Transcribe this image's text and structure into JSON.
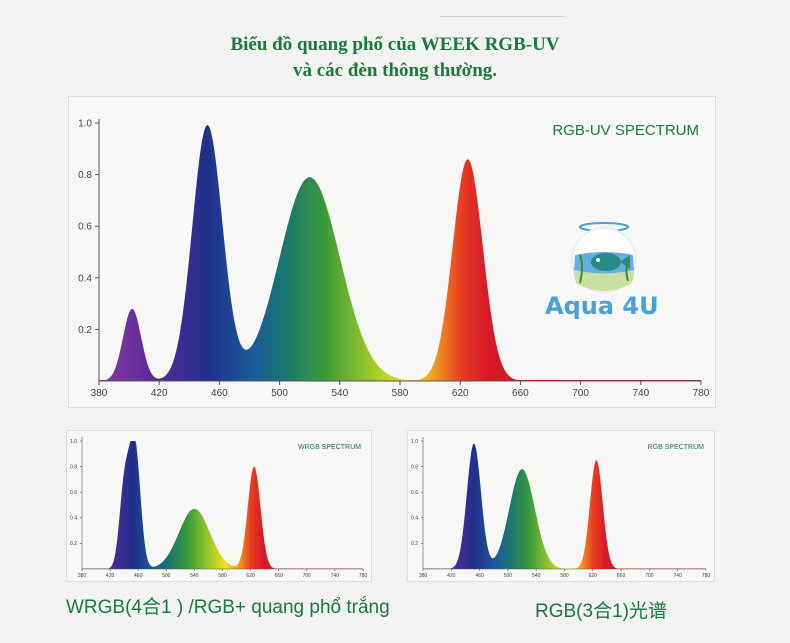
{
  "header": {
    "title_line1": "Biểu đồ quang phổ của WEEK RGB-UV",
    "title_line2": "và các đèn thông thường."
  },
  "logo": {
    "text": "Aqua 4U",
    "icon": "fishbowl-icon",
    "color": "#4aa0d8"
  },
  "captions": {
    "wrgb": "WRGB(4合1 ) /RGB+ quang phổ trắng",
    "rgb": "RGB(3合1)光谱"
  },
  "colors": {
    "title_green": "#1a7a3c",
    "label_green": "#1a7a3c"
  },
  "chart_data": [
    {
      "type": "area",
      "title": "RGB-UV SPECTRUM",
      "x_ticks": [
        380,
        420,
        460,
        500,
        540,
        580,
        620,
        660,
        700,
        740,
        780
      ],
      "y_ticks": [
        0.2,
        0.4,
        0.6,
        0.8,
        1.0
      ],
      "xlim": [
        380,
        780
      ],
      "ylim": [
        0,
        1.0
      ],
      "grid": false,
      "fill": "visible-spectrum-gradient",
      "peaks": [
        {
          "x": 402,
          "y": 0.28,
          "width": 6
        },
        {
          "x": 452,
          "y": 0.99,
          "width": 10
        },
        {
          "x": 520,
          "y": 0.79,
          "width": 20
        },
        {
          "x": 625,
          "y": 0.86,
          "width": 10
        }
      ]
    },
    {
      "type": "area",
      "title": "WRGB SPECTRUM",
      "x_ticks": [
        380,
        420,
        460,
        500,
        540,
        580,
        620,
        660,
        700,
        740,
        780
      ],
      "y_ticks": [
        0.2,
        0.4,
        0.6,
        0.8,
        1.0
      ],
      "xlim": [
        380,
        780
      ],
      "ylim": [
        0,
        1.0
      ],
      "grid": false,
      "fill": "visible-spectrum-gradient",
      "peaks": [
        {
          "x": 440,
          "y": 0.6,
          "width": 7
        },
        {
          "x": 455,
          "y": 0.98,
          "width": 8
        },
        {
          "x": 540,
          "y": 0.47,
          "width": 22
        },
        {
          "x": 625,
          "y": 0.8,
          "width": 9
        }
      ]
    },
    {
      "type": "area",
      "title": "RGB SPECTRUM",
      "x_ticks": [
        380,
        420,
        460,
        500,
        540,
        580,
        620,
        660,
        700,
        740,
        780
      ],
      "y_ticks": [
        0.2,
        0.4,
        0.6,
        0.8,
        1.0
      ],
      "xlim": [
        380,
        780
      ],
      "ylim": [
        0,
        1.0
      ],
      "grid": false,
      "fill": "visible-spectrum-gradient",
      "peaks": [
        {
          "x": 452,
          "y": 0.98,
          "width": 10
        },
        {
          "x": 520,
          "y": 0.78,
          "width": 18
        },
        {
          "x": 625,
          "y": 0.85,
          "width": 9
        }
      ]
    }
  ]
}
